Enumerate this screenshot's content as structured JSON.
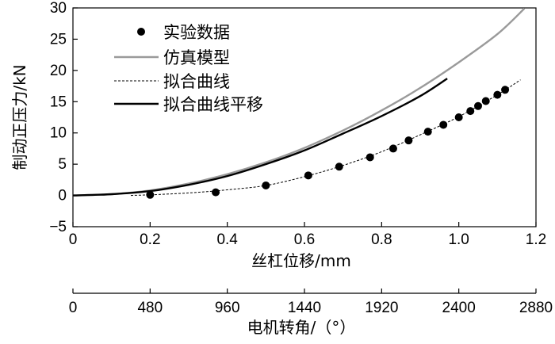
{
  "chart_data": {
    "type": "line",
    "title": "",
    "xlabel": "丝杠位移/mm",
    "ylabel": "制动正压力/kN",
    "x2label": "电机转角/（°）",
    "xlim": [
      0,
      1.2
    ],
    "ylim": [
      -5,
      30
    ],
    "x_ticks": [
      "0",
      "0.2",
      "0.4",
      "0.6",
      "0.8",
      "1.0",
      "1.2"
    ],
    "x_tick_values": [
      0,
      0.2,
      0.4,
      0.6,
      0.8,
      1.0,
      1.2
    ],
    "y_ticks": [
      "−5",
      "0",
      "5",
      "10",
      "15",
      "20",
      "25",
      "30"
    ],
    "y_tick_values": [
      -5,
      0,
      5,
      10,
      15,
      20,
      25,
      30
    ],
    "x2lim": [
      0,
      2880
    ],
    "x2_ticks": [
      "0",
      "480",
      "960",
      "1440",
      "1920",
      "2400",
      "2880"
    ],
    "x2_tick_values": [
      0,
      480,
      960,
      1440,
      1920,
      2400,
      2880
    ],
    "legend_position": "top-left",
    "series": [
      {
        "name": "实验数据",
        "kind": "scatter",
        "color": "#000000",
        "x": [
          0.2,
          0.37,
          0.5,
          0.61,
          0.69,
          0.77,
          0.83,
          0.87,
          0.92,
          0.96,
          1.0,
          1.03,
          1.05,
          1.07,
          1.1,
          1.12
        ],
        "y": [
          0.1,
          0.5,
          1.6,
          3.2,
          4.6,
          6.1,
          7.5,
          8.8,
          10.2,
          11.3,
          12.5,
          13.5,
          14.3,
          15.1,
          16.1,
          16.9
        ]
      },
      {
        "name": "仿真模型",
        "kind": "line",
        "style": "solid-gray",
        "color": "#9a9a9a",
        "x": [
          0,
          0.1,
          0.2,
          0.3,
          0.4,
          0.5,
          0.6,
          0.7,
          0.8,
          0.9,
          1.0,
          1.1,
          1.17
        ],
        "y": [
          0,
          0.2,
          0.8,
          1.9,
          3.4,
          5.3,
          7.6,
          10.4,
          13.6,
          17.2,
          21.3,
          25.8,
          29.9
        ]
      },
      {
        "name": "拟合曲线",
        "kind": "line",
        "style": "dashed",
        "color": "#000000",
        "x": [
          0.15,
          0.2,
          0.3,
          0.4,
          0.5,
          0.6,
          0.7,
          0.8,
          0.9,
          1.0,
          1.1,
          1.16
        ],
        "y": [
          0,
          0.1,
          0.4,
          0.9,
          1.6,
          3.0,
          4.8,
          7.0,
          9.7,
          12.6,
          16.1,
          18.5
        ]
      },
      {
        "name": "拟合曲线平移",
        "kind": "line",
        "style": "solid-thick",
        "color": "#000000",
        "x": [
          0,
          0.1,
          0.2,
          0.3,
          0.4,
          0.5,
          0.6,
          0.7,
          0.8,
          0.9,
          0.97
        ],
        "y": [
          0,
          0.2,
          0.7,
          1.7,
          3.1,
          5.0,
          7.2,
          9.9,
          12.7,
          15.9,
          18.7
        ]
      }
    ]
  }
}
